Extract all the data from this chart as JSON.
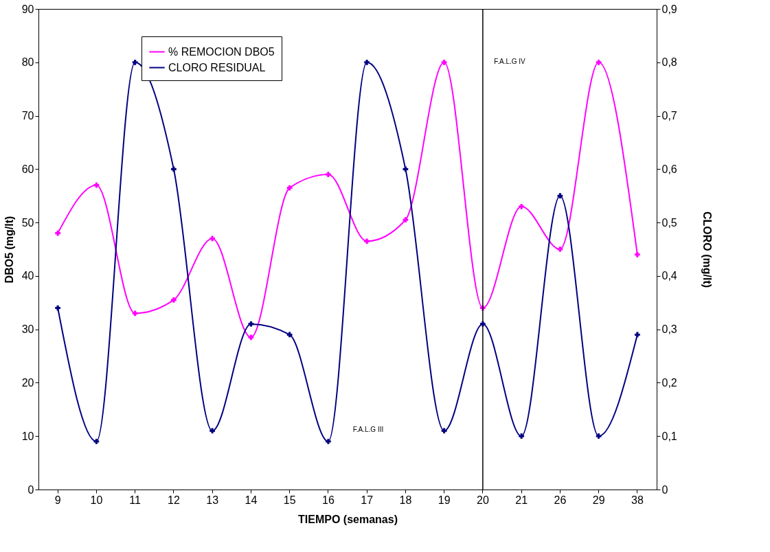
{
  "chart_data": {
    "type": "line",
    "xlabel": "TIEMPO (semanas)",
    "ylabel": "DBO5 (mg/lt)",
    "y2label": "CLORO (mg/lt)",
    "categories": [
      "9",
      "10",
      "11",
      "12",
      "13",
      "14",
      "15",
      "16",
      "17",
      "18",
      "19",
      "20",
      "21",
      "26",
      "29",
      "38"
    ],
    "series": [
      {
        "name": "% REMOCION DBO5",
        "color": "#ff00ff",
        "values": [
          48,
          57,
          33,
          35.5,
          47,
          28.5,
          56.5,
          59,
          46.5,
          50.5,
          80,
          34,
          53,
          45,
          80,
          44
        ]
      },
      {
        "name": "CLORO RESIDUAL",
        "color": "#000080",
        "axis": "y2",
        "values": [
          0.34,
          0.09,
          0.8,
          0.6,
          0.11,
          0.31,
          0.29,
          0.09,
          0.8,
          0.6,
          0.11,
          0.31,
          0.1,
          0.55,
          0.1,
          0.29
        ]
      }
    ],
    "ylim": [
      0,
      90
    ],
    "yticks": [
      0,
      10,
      20,
      30,
      40,
      50,
      60,
      70,
      80,
      90
    ],
    "y2lim": [
      0,
      0.9
    ],
    "y2ticks": [
      {
        "value": 0,
        "label": "0"
      },
      {
        "value": 0.1,
        "label": "0,1"
      },
      {
        "value": 0.2,
        "label": "0,2"
      },
      {
        "value": 0.3,
        "label": "0,3"
      },
      {
        "value": 0.4,
        "label": "0,4"
      },
      {
        "value": 0.5,
        "label": "0,5"
      },
      {
        "value": 0.6,
        "label": "0,6"
      },
      {
        "value": 0.7,
        "label": "0,7"
      },
      {
        "value": 0.8,
        "label": "0,8"
      },
      {
        "value": 0.9,
        "label": "0,9"
      }
    ],
    "ref_lines": [
      {
        "axis": "x",
        "value": "20",
        "color": "#000000"
      }
    ],
    "annotations": [
      "F.A.L.G III",
      "F.A.L.G IV"
    ],
    "legend": "top left",
    "grid": false,
    "marker": "cross",
    "line_style": "solid"
  }
}
